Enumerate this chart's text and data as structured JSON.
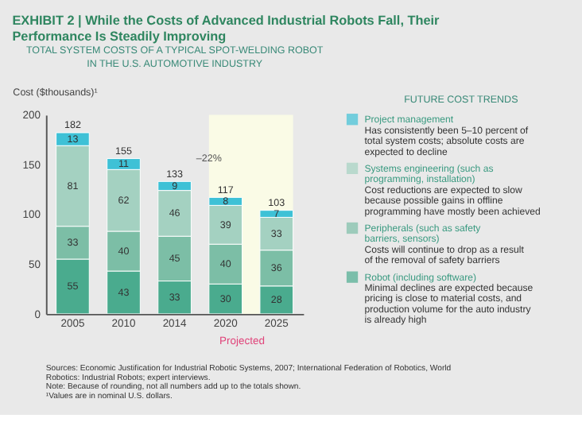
{
  "chart_data": {
    "type": "bar",
    "stacked": true,
    "title": "EXHIBIT 2 | While the Costs of Advanced Industrial Robots Fall, Their Performance Is Steadily Improving",
    "subtitle": "TOTAL SYSTEM COSTS OF A TYPICAL SPOT-WELDING ROBOT IN THE U.S. AUTOMOTIVE INDUSTRY",
    "ylabel": "Cost ($thousands)¹",
    "legend_title": "FUTURE COST TRENDS",
    "categories": [
      "2005",
      "2010",
      "2014",
      "2020",
      "2025"
    ],
    "series": [
      {
        "name": "Robot (including software)",
        "color": "#4aab8e",
        "values": [
          55,
          43,
          33,
          30,
          28
        ]
      },
      {
        "name": "Peripherals (such as safety barriers, sensors)",
        "color": "#7cbea6",
        "values": [
          33,
          40,
          45,
          40,
          36
        ]
      },
      {
        "name": "Systems engineering (such as programming, installation)",
        "color": "#a4d1c1",
        "values": [
          81,
          62,
          46,
          39,
          33
        ]
      },
      {
        "name": "Project management",
        "color": "#3ec1d6",
        "values": [
          13,
          11,
          9,
          8,
          7
        ]
      }
    ],
    "totals": [
      "182",
      "155",
      "133",
      "117",
      "103"
    ],
    "data_labels": true,
    "ylim": [
      0,
      200
    ],
    "yticks": [
      0,
      50,
      100,
      150,
      200
    ],
    "grid": false,
    "legend": "right",
    "bands": [
      {
        "axis": "x",
        "from": "2020",
        "to": "2025",
        "label": "Projected",
        "color": "#fafbe6"
      }
    ],
    "annotations": [
      "–22%",
      "Minimal declines are expected because pricing is close to material costs, and production volume for the auto industry is already high",
      "Costs will continue to drop as a result of the removal of safety barriers",
      "Cost reductions are expected to slow because possible gains in offline programming have mostly been achieved",
      "Has consistently been 5–10 percent of total system costs; absolute costs are expected to decline",
      "Sources: Economic Justification for Industrial Robotic Systems, 2007; International Federation of Robotics, World Robotics: Industrial Robots; expert interviews.",
      "Note: Because of rounding, not all numbers add up to the totals shown.",
      "¹Values are in nominal U.S. dollars."
    ]
  }
}
